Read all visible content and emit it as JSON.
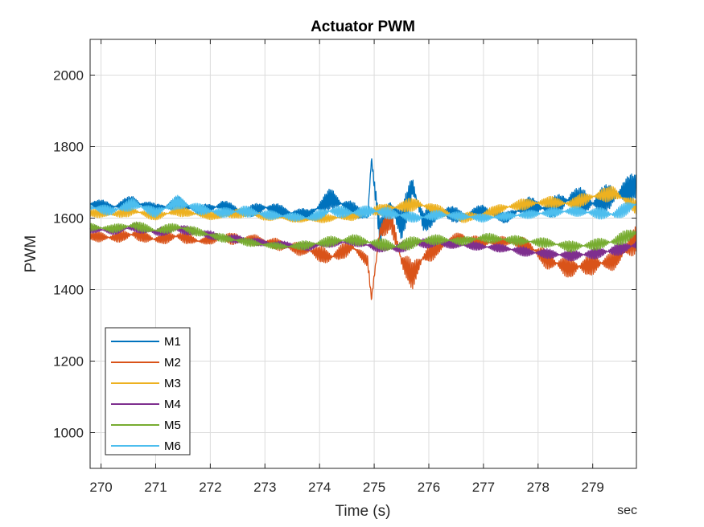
{
  "chart_data": {
    "type": "line",
    "title": "Actuator PWM",
    "xlabel": "Time (s)",
    "ylabel": "PWM",
    "x_unit_note": "sec",
    "xlim": [
      269.8,
      279.8
    ],
    "ylim": [
      900,
      2100
    ],
    "xticks": [
      270,
      271,
      272,
      273,
      274,
      275,
      276,
      277,
      278,
      279
    ],
    "yticks": [
      1000,
      1200,
      1400,
      1600,
      1800,
      2000
    ],
    "grid": true,
    "legend_position": "bottom-left",
    "series": [
      {
        "name": "M1",
        "color": "#0072BD",
        "x": [
          269.8,
          270.2,
          270.6,
          271.0,
          271.4,
          271.8,
          272.2,
          272.6,
          273.0,
          273.4,
          273.8,
          274.2,
          274.6,
          274.88,
          274.95,
          275.1,
          275.3,
          275.5,
          275.7,
          275.9,
          276.2,
          276.6,
          277.0,
          277.4,
          277.8,
          278.2,
          278.6,
          279.0,
          279.4,
          279.8
        ],
        "y": [
          1640,
          1630,
          1645,
          1625,
          1640,
          1620,
          1635,
          1615,
          1630,
          1615,
          1610,
          1655,
          1625,
          1600,
          1765,
          1560,
          1640,
          1580,
          1690,
          1590,
          1620,
          1605,
          1620,
          1600,
          1635,
          1625,
          1655,
          1640,
          1665,
          1690
        ],
        "amplitude": [
          18,
          15,
          20,
          15,
          22,
          15,
          18,
          15,
          20,
          18,
          15,
          30,
          22,
          15,
          10,
          35,
          40,
          45,
          50,
          35,
          25,
          20,
          18,
          15,
          25,
          28,
          35,
          40,
          38,
          40
        ]
      },
      {
        "name": "M2",
        "color": "#D95319",
        "x": [
          269.8,
          270.2,
          270.6,
          271.0,
          271.4,
          271.8,
          272.2,
          272.6,
          273.0,
          273.4,
          273.8,
          274.2,
          274.6,
          274.88,
          274.95,
          275.1,
          275.3,
          275.5,
          275.7,
          275.9,
          276.2,
          276.6,
          277.0,
          277.4,
          277.8,
          278.2,
          278.6,
          279.0,
          279.4,
          279.8
        ],
        "y": [
          1550,
          1545,
          1555,
          1540,
          1550,
          1535,
          1545,
          1540,
          1535,
          1520,
          1510,
          1490,
          1520,
          1480,
          1375,
          1560,
          1600,
          1480,
          1440,
          1490,
          1520,
          1545,
          1530,
          1535,
          1525,
          1480,
          1460,
          1470,
          1480,
          1540
        ],
        "amplitude": [
          15,
          15,
          18,
          15,
          18,
          12,
          15,
          18,
          15,
          18,
          20,
          25,
          20,
          15,
          8,
          30,
          35,
          40,
          40,
          30,
          22,
          18,
          15,
          15,
          20,
          28,
          30,
          30,
          25,
          40
        ]
      },
      {
        "name": "M3",
        "color": "#EDB120",
        "x": [
          269.8,
          270.2,
          270.6,
          271.0,
          271.4,
          271.8,
          272.2,
          272.6,
          273.0,
          273.4,
          273.8,
          274.2,
          274.6,
          275.0,
          275.4,
          275.8,
          276.2,
          276.6,
          277.0,
          277.4,
          277.8,
          278.2,
          278.6,
          279.0,
          279.4,
          279.8
        ],
        "y": [
          1615,
          1610,
          1620,
          1605,
          1620,
          1610,
          1605,
          1615,
          1605,
          1600,
          1595,
          1600,
          1605,
          1620,
          1630,
          1640,
          1620,
          1600,
          1610,
          1630,
          1640,
          1645,
          1640,
          1660,
          1670,
          1630
        ],
        "amplitude": [
          12,
          12,
          15,
          12,
          15,
          12,
          12,
          14,
          12,
          10,
          10,
          12,
          12,
          15,
          18,
          20,
          15,
          14,
          14,
          16,
          16,
          16,
          18,
          20,
          22,
          20
        ]
      },
      {
        "name": "M4",
        "color": "#7E2F8E",
        "x": [
          269.8,
          270.2,
          270.6,
          271.0,
          271.4,
          271.8,
          272.2,
          272.6,
          273.0,
          273.4,
          273.8,
          274.2,
          274.6,
          275.0,
          275.4,
          275.8,
          276.2,
          276.6,
          277.0,
          277.4,
          277.8,
          278.2,
          278.6,
          279.0,
          279.4,
          279.8
        ],
        "y": [
          1570,
          1565,
          1575,
          1560,
          1570,
          1560,
          1545,
          1540,
          1530,
          1525,
          1520,
          1530,
          1535,
          1520,
          1515,
          1530,
          1530,
          1525,
          1520,
          1515,
          1505,
          1500,
          1495,
          1500,
          1510,
          1525
        ],
        "amplitude": [
          12,
          12,
          14,
          12,
          14,
          12,
          12,
          12,
          10,
          10,
          12,
          12,
          12,
          14,
          15,
          15,
          14,
          12,
          12,
          12,
          14,
          14,
          16,
          16,
          18,
          18
        ]
      },
      {
        "name": "M5",
        "color": "#77AC30",
        "x": [
          269.8,
          270.2,
          270.6,
          271.0,
          271.4,
          271.8,
          272.2,
          272.6,
          273.0,
          273.4,
          273.8,
          274.2,
          274.6,
          275.0,
          275.4,
          275.8,
          276.2,
          276.6,
          277.0,
          277.4,
          277.8,
          278.2,
          278.6,
          279.0,
          279.4,
          279.8
        ],
        "y": [
          1575,
          1570,
          1580,
          1565,
          1575,
          1560,
          1545,
          1535,
          1525,
          1520,
          1525,
          1535,
          1540,
          1530,
          1520,
          1535,
          1540,
          1535,
          1545,
          1540,
          1535,
          1530,
          1520,
          1525,
          1535,
          1560
        ],
        "amplitude": [
          12,
          12,
          14,
          12,
          14,
          12,
          12,
          12,
          10,
          10,
          14,
          15,
          15,
          16,
          18,
          18,
          14,
          12,
          14,
          14,
          14,
          14,
          16,
          16,
          18,
          20
        ]
      },
      {
        "name": "M6",
        "color": "#4DBEEE",
        "x": [
          269.8,
          270.2,
          270.6,
          271.0,
          271.4,
          271.8,
          272.2,
          272.6,
          273.0,
          273.4,
          273.8,
          274.2,
          274.6,
          275.0,
          275.4,
          275.8,
          276.2,
          276.6,
          277.0,
          277.4,
          277.8,
          278.2,
          278.6,
          279.0,
          279.4,
          279.8
        ],
        "y": [
          1630,
          1620,
          1640,
          1615,
          1645,
          1625,
          1615,
          1620,
          1610,
          1605,
          1600,
          1620,
          1615,
          1620,
          1610,
          1600,
          1610,
          1605,
          1600,
          1605,
          1610,
          1615,
          1620,
          1615,
          1610,
          1640
        ],
        "amplitude": [
          15,
          14,
          18,
          14,
          20,
          16,
          14,
          16,
          14,
          12,
          12,
          18,
          16,
          18,
          16,
          14,
          14,
          12,
          12,
          12,
          12,
          14,
          14,
          16,
          18,
          22
        ]
      }
    ]
  }
}
